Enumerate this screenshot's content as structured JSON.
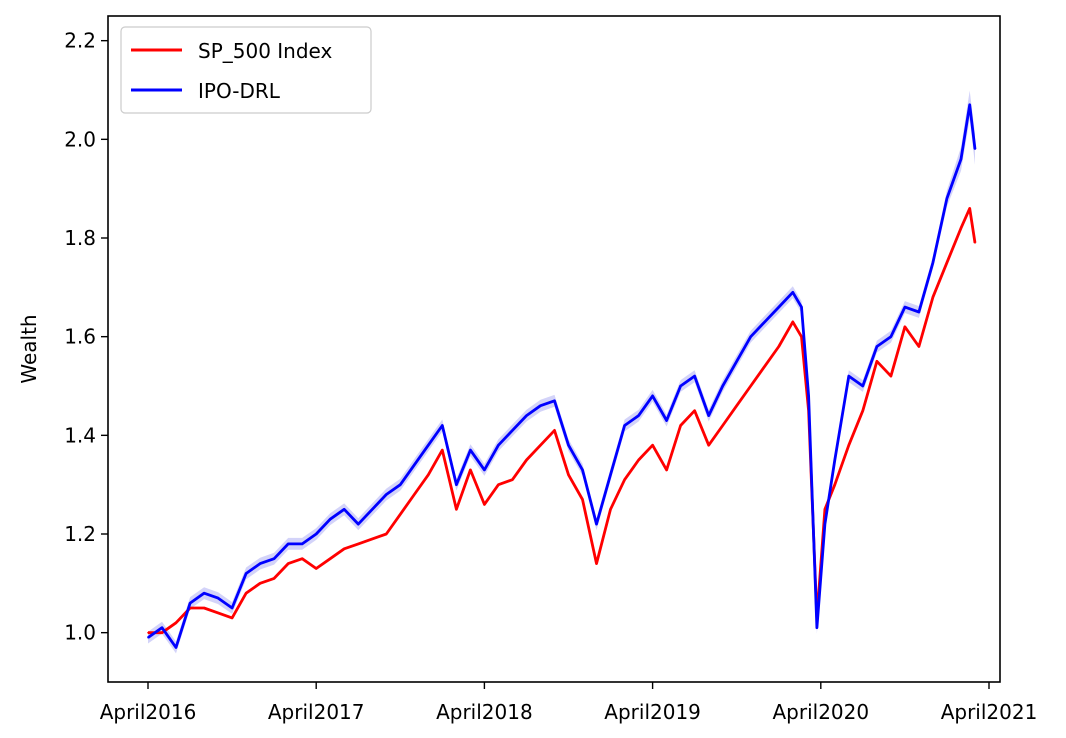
{
  "chart_data": {
    "type": "line",
    "title": "",
    "xlabel": "",
    "ylabel": "Wealth",
    "x_tick_labels": [
      "April2016",
      "April2017",
      "April2018",
      "April2019",
      "April2020",
      "April2021"
    ],
    "y_tick_labels": [
      "1.0",
      "1.2",
      "1.4",
      "1.6",
      "1.8",
      "2.0",
      "2.2"
    ],
    "x_range": [
      "2016-04",
      "2021-04"
    ],
    "ylim": [
      0.9,
      2.25
    ],
    "grid": false,
    "legend_position": "top-left",
    "series": [
      {
        "name": "SP_500 Index",
        "color": "#ff0000",
        "points": [
          [
            "2016-04-01",
            1.0
          ],
          [
            "2016-05-01",
            1.0
          ],
          [
            "2016-06-01",
            1.02
          ],
          [
            "2016-07-01",
            1.05
          ],
          [
            "2016-08-01",
            1.05
          ],
          [
            "2016-09-01",
            1.04
          ],
          [
            "2016-10-01",
            1.03
          ],
          [
            "2016-11-01",
            1.08
          ],
          [
            "2016-12-01",
            1.1
          ],
          [
            "2017-01-01",
            1.11
          ],
          [
            "2017-02-01",
            1.14
          ],
          [
            "2017-03-01",
            1.15
          ],
          [
            "2017-04-01",
            1.13
          ],
          [
            "2017-05-01",
            1.15
          ],
          [
            "2017-06-01",
            1.17
          ],
          [
            "2017-07-01",
            1.18
          ],
          [
            "2017-08-01",
            1.19
          ],
          [
            "2017-09-01",
            1.2
          ],
          [
            "2017-10-01",
            1.24
          ],
          [
            "2017-11-01",
            1.28
          ],
          [
            "2017-12-01",
            1.32
          ],
          [
            "2018-01-01",
            1.37
          ],
          [
            "2018-02-01",
            1.25
          ],
          [
            "2018-03-01",
            1.33
          ],
          [
            "2018-04-01",
            1.26
          ],
          [
            "2018-05-01",
            1.3
          ],
          [
            "2018-06-01",
            1.31
          ],
          [
            "2018-07-01",
            1.35
          ],
          [
            "2018-08-01",
            1.38
          ],
          [
            "2018-09-01",
            1.41
          ],
          [
            "2018-10-01",
            1.32
          ],
          [
            "2018-11-01",
            1.27
          ],
          [
            "2018-12-01",
            1.14
          ],
          [
            "2019-01-01",
            1.25
          ],
          [
            "2019-02-01",
            1.31
          ],
          [
            "2019-03-01",
            1.35
          ],
          [
            "2019-04-01",
            1.38
          ],
          [
            "2019-05-01",
            1.33
          ],
          [
            "2019-06-01",
            1.42
          ],
          [
            "2019-07-01",
            1.45
          ],
          [
            "2019-08-01",
            1.38
          ],
          [
            "2019-09-01",
            1.42
          ],
          [
            "2019-10-01",
            1.46
          ],
          [
            "2019-11-01",
            1.5
          ],
          [
            "2019-12-01",
            1.54
          ],
          [
            "2020-01-01",
            1.58
          ],
          [
            "2020-02-01",
            1.63
          ],
          [
            "2020-02-20",
            1.6
          ],
          [
            "2020-03-05",
            1.45
          ],
          [
            "2020-03-23",
            1.03
          ],
          [
            "2020-04-10",
            1.25
          ],
          [
            "2020-05-01",
            1.3
          ],
          [
            "2020-06-01",
            1.38
          ],
          [
            "2020-07-01",
            1.45
          ],
          [
            "2020-08-01",
            1.55
          ],
          [
            "2020-09-01",
            1.52
          ],
          [
            "2020-10-01",
            1.62
          ],
          [
            "2020-11-01",
            1.58
          ],
          [
            "2020-12-01",
            1.68
          ],
          [
            "2021-01-01",
            1.75
          ],
          [
            "2021-02-01",
            1.82
          ],
          [
            "2021-02-20",
            1.86
          ],
          [
            "2021-03-01",
            1.79
          ]
        ]
      },
      {
        "name": "IPO-DRL",
        "color": "#0000ff",
        "band_color": "#8080ee",
        "points": [
          [
            "2016-04-01",
            0.99
          ],
          [
            "2016-05-01",
            1.01
          ],
          [
            "2016-06-01",
            0.97
          ],
          [
            "2016-07-01",
            1.06
          ],
          [
            "2016-08-01",
            1.08
          ],
          [
            "2016-09-01",
            1.07
          ],
          [
            "2016-10-01",
            1.05
          ],
          [
            "2016-11-01",
            1.12
          ],
          [
            "2016-12-01",
            1.14
          ],
          [
            "2017-01-01",
            1.15
          ],
          [
            "2017-02-01",
            1.18
          ],
          [
            "2017-03-01",
            1.18
          ],
          [
            "2017-04-01",
            1.2
          ],
          [
            "2017-05-01",
            1.23
          ],
          [
            "2017-06-01",
            1.25
          ],
          [
            "2017-07-01",
            1.22
          ],
          [
            "2017-08-01",
            1.25
          ],
          [
            "2017-09-01",
            1.28
          ],
          [
            "2017-10-01",
            1.3
          ],
          [
            "2017-11-01",
            1.34
          ],
          [
            "2017-12-01",
            1.38
          ],
          [
            "2018-01-01",
            1.42
          ],
          [
            "2018-02-01",
            1.3
          ],
          [
            "2018-03-01",
            1.37
          ],
          [
            "2018-04-01",
            1.33
          ],
          [
            "2018-05-01",
            1.38
          ],
          [
            "2018-06-01",
            1.41
          ],
          [
            "2018-07-01",
            1.44
          ],
          [
            "2018-08-01",
            1.46
          ],
          [
            "2018-09-01",
            1.47
          ],
          [
            "2018-10-01",
            1.38
          ],
          [
            "2018-11-01",
            1.33
          ],
          [
            "2018-12-01",
            1.22
          ],
          [
            "2019-01-01",
            1.32
          ],
          [
            "2019-02-01",
            1.42
          ],
          [
            "2019-03-01",
            1.44
          ],
          [
            "2019-04-01",
            1.48
          ],
          [
            "2019-05-01",
            1.43
          ],
          [
            "2019-06-01",
            1.5
          ],
          [
            "2019-07-01",
            1.52
          ],
          [
            "2019-08-01",
            1.44
          ],
          [
            "2019-09-01",
            1.5
          ],
          [
            "2019-10-01",
            1.55
          ],
          [
            "2019-11-01",
            1.6
          ],
          [
            "2019-12-01",
            1.63
          ],
          [
            "2020-01-01",
            1.66
          ],
          [
            "2020-02-01",
            1.69
          ],
          [
            "2020-02-20",
            1.66
          ],
          [
            "2020-03-05",
            1.48
          ],
          [
            "2020-03-23",
            1.01
          ],
          [
            "2020-04-10",
            1.22
          ],
          [
            "2020-05-01",
            1.35
          ],
          [
            "2020-06-01",
            1.52
          ],
          [
            "2020-07-01",
            1.5
          ],
          [
            "2020-08-01",
            1.58
          ],
          [
            "2020-09-01",
            1.6
          ],
          [
            "2020-10-01",
            1.66
          ],
          [
            "2020-11-01",
            1.65
          ],
          [
            "2020-12-01",
            1.75
          ],
          [
            "2021-01-01",
            1.88
          ],
          [
            "2021-02-01",
            1.96
          ],
          [
            "2021-02-20",
            2.07
          ],
          [
            "2021-03-01",
            1.98
          ]
        ]
      }
    ]
  }
}
